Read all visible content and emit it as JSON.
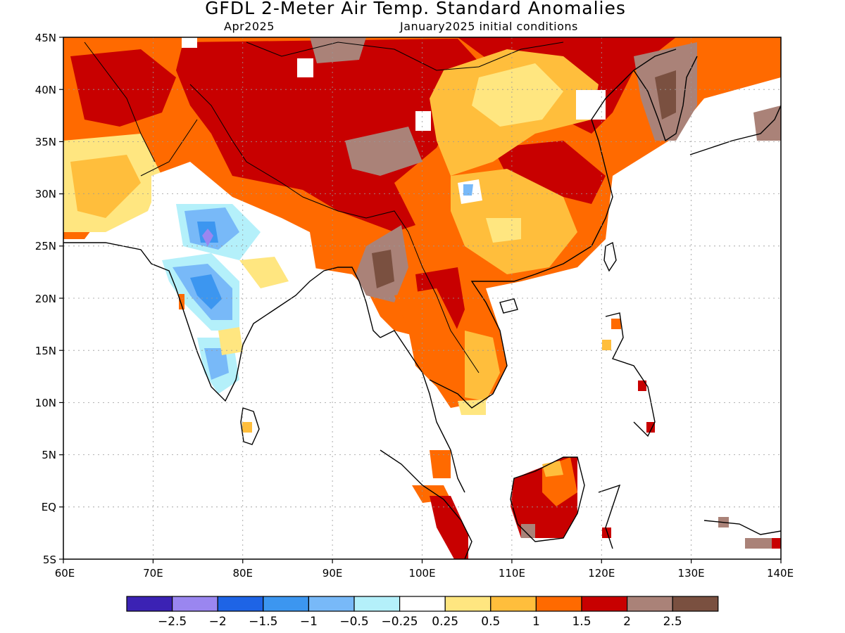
{
  "title": "GFDL 2-Meter Air Temp. Standard Anomalies",
  "subtitle_left": "Apr2025",
  "subtitle_right": "January2025 initial conditions",
  "lat_ticks": [
    "45N",
    "40N",
    "35N",
    "30N",
    "25N",
    "20N",
    "15N",
    "10N",
    "5N",
    "EQ",
    "5S"
  ],
  "lon_ticks": [
    "60E",
    "70E",
    "80E",
    "90E",
    "100E",
    "110E",
    "120E",
    "130E",
    "140E"
  ],
  "colorbar": {
    "colors": [
      "#3b22b4",
      "#9a86f0",
      "#1e64e6",
      "#3c96f0",
      "#78b9f8",
      "#b4f0fa",
      "#ffffff",
      "#ffe680",
      "#ffbe3c",
      "#ff6a00",
      "#c80000",
      "#aa8278",
      "#7a5040"
    ],
    "labels": [
      "−2.5",
      "−2",
      "−1.5",
      "−1",
      "−0.5",
      "−0.25",
      "0.25",
      "0.5",
      "1",
      "1.5",
      "2",
      "2.5"
    ]
  },
  "map_data": {
    "region": {
      "lon_min": 60,
      "lon_max": 140,
      "lat_min": -5,
      "lat_max": 45
    },
    "variable": "2-meter air temperature standard anomaly",
    "anomaly_regions": [
      {
        "name": "Tibetan Plateau / northwest China",
        "level": "1.5 to 2"
      },
      {
        "name": "eastern Mongolia / north China",
        "level": "0.5 to 1"
      },
      {
        "name": "central India",
        "level": "-0.25 to -1.5"
      },
      {
        "name": "Iran / Pakistan / Afghanistan",
        "level": "0.5 to 1.5"
      },
      {
        "name": "Myanmar",
        "level": "2 to 2.5"
      },
      {
        "name": "Korea",
        "level": "2 to 2.5"
      },
      {
        "name": "Indochina",
        "level": "1 to 2"
      },
      {
        "name": "Borneo",
        "level": "1.5 to 2"
      },
      {
        "name": "Sumatra",
        "level": "1.5 to 2"
      }
    ]
  }
}
